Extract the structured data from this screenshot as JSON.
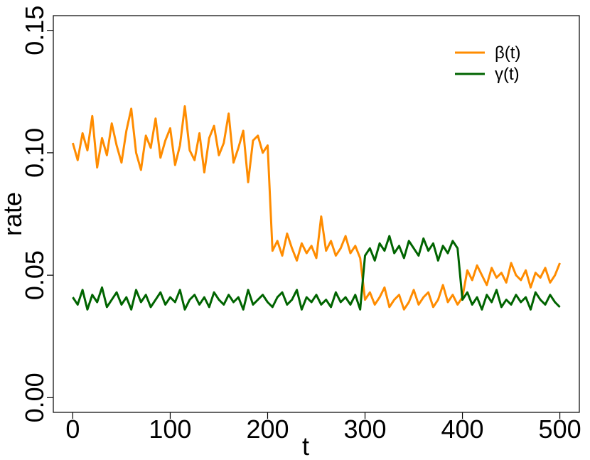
{
  "chart_data": {
    "type": "line",
    "x_label": "t",
    "y_label": "rate",
    "x": [
      0,
      5,
      10,
      15,
      20,
      25,
      30,
      35,
      40,
      45,
      50,
      55,
      60,
      65,
      70,
      75,
      80,
      85,
      90,
      95,
      100,
      105,
      110,
      115,
      120,
      125,
      130,
      135,
      140,
      145,
      150,
      155,
      160,
      165,
      170,
      175,
      180,
      185,
      190,
      195,
      200,
      205,
      210,
      215,
      220,
      225,
      230,
      235,
      240,
      245,
      250,
      255,
      260,
      265,
      270,
      275,
      280,
      285,
      290,
      295,
      300,
      305,
      310,
      315,
      320,
      325,
      330,
      335,
      340,
      345,
      350,
      355,
      360,
      365,
      370,
      375,
      380,
      385,
      390,
      395,
      400,
      405,
      410,
      415,
      420,
      425,
      430,
      435,
      440,
      445,
      450,
      455,
      460,
      465,
      470,
      475,
      480,
      485,
      490,
      495,
      500
    ],
    "series": [
      {
        "name": "β(t)",
        "color": "#ff8c00",
        "values": [
          0.104,
          0.097,
          0.108,
          0.101,
          0.115,
          0.094,
          0.106,
          0.099,
          0.112,
          0.103,
          0.096,
          0.109,
          0.118,
          0.1,
          0.093,
          0.107,
          0.102,
          0.114,
          0.098,
          0.105,
          0.11,
          0.095,
          0.103,
          0.119,
          0.101,
          0.097,
          0.108,
          0.092,
          0.106,
          0.111,
          0.099,
          0.104,
          0.116,
          0.096,
          0.102,
          0.109,
          0.088,
          0.105,
          0.107,
          0.1,
          0.103,
          0.06,
          0.064,
          0.058,
          0.067,
          0.061,
          0.056,
          0.063,
          0.059,
          0.062,
          0.057,
          0.074,
          0.06,
          0.064,
          0.058,
          0.061,
          0.066,
          0.059,
          0.062,
          0.057,
          0.04,
          0.043,
          0.038,
          0.041,
          0.045,
          0.037,
          0.04,
          0.042,
          0.036,
          0.039,
          0.044,
          0.038,
          0.041,
          0.043,
          0.037,
          0.04,
          0.046,
          0.039,
          0.042,
          0.038,
          0.041,
          0.052,
          0.048,
          0.054,
          0.05,
          0.046,
          0.053,
          0.049,
          0.051,
          0.047,
          0.055,
          0.05,
          0.048,
          0.052,
          0.045,
          0.051,
          0.049,
          0.053,
          0.047,
          0.05,
          0.055
        ]
      },
      {
        "name": "γ(t)",
        "color": "#006400",
        "values": [
          0.041,
          0.038,
          0.044,
          0.036,
          0.042,
          0.039,
          0.045,
          0.037,
          0.04,
          0.043,
          0.038,
          0.041,
          0.036,
          0.044,
          0.039,
          0.042,
          0.037,
          0.04,
          0.043,
          0.038,
          0.041,
          0.039,
          0.044,
          0.036,
          0.04,
          0.042,
          0.038,
          0.041,
          0.037,
          0.043,
          0.04,
          0.038,
          0.042,
          0.039,
          0.041,
          0.036,
          0.044,
          0.038,
          0.04,
          0.042,
          0.039,
          0.037,
          0.041,
          0.043,
          0.038,
          0.04,
          0.044,
          0.036,
          0.041,
          0.039,
          0.042,
          0.038,
          0.04,
          0.037,
          0.043,
          0.039,
          0.041,
          0.038,
          0.042,
          0.036,
          0.058,
          0.061,
          0.056,
          0.063,
          0.06,
          0.066,
          0.059,
          0.062,
          0.057,
          0.064,
          0.061,
          0.058,
          0.065,
          0.06,
          0.063,
          0.056,
          0.062,
          0.059,
          0.064,
          0.061,
          0.04,
          0.043,
          0.038,
          0.041,
          0.036,
          0.042,
          0.039,
          0.044,
          0.037,
          0.04,
          0.038,
          0.042,
          0.039,
          0.041,
          0.036,
          0.043,
          0.04,
          0.038,
          0.042,
          0.039,
          0.037
        ]
      }
    ],
    "xlim": [
      -20,
      520
    ],
    "ylim": [
      -0.006,
      0.156
    ],
    "xticks": [
      0,
      100,
      200,
      300,
      400,
      500
    ],
    "yticks": [
      {
        "value": 0,
        "label": "0.00"
      },
      {
        "value": 0.05,
        "label": "0.05"
      },
      {
        "value": 0.1,
        "label": "0.10"
      },
      {
        "value": 0.15,
        "label": "0.15"
      }
    ],
    "legend": "top-right"
  }
}
